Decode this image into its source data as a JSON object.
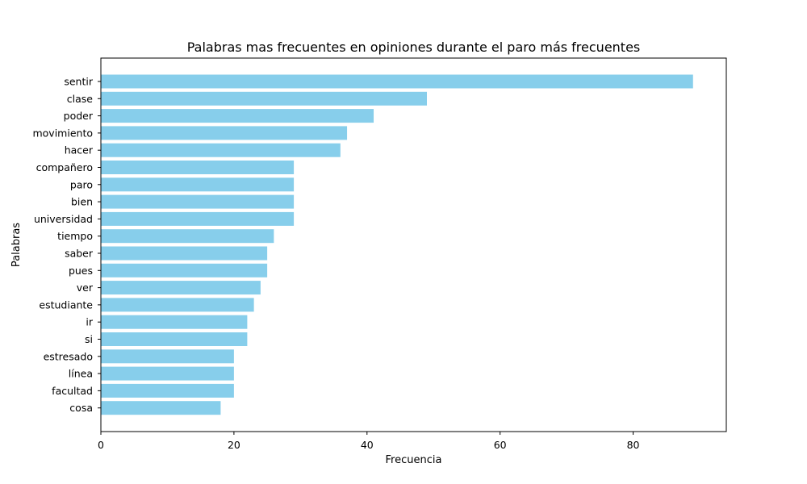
{
  "chart_data": {
    "type": "bar",
    "orientation": "horizontal",
    "title": "Palabras mas frecuentes en opiniones durante el paro más frecuentes",
    "xlabel": "Frecuencia",
    "ylabel": "Palabras",
    "xlim": [
      0,
      94
    ],
    "xticks": [
      0,
      20,
      40,
      60,
      80
    ],
    "categories": [
      "sentir",
      "clase",
      "poder",
      "movimiento",
      "hacer",
      "compañero",
      "paro",
      "bien",
      "universidad",
      "tiempo",
      "saber",
      "pues",
      "ver",
      "estudiante",
      "ir",
      "si",
      "estresado",
      "línea",
      "facultad",
      "cosa"
    ],
    "values": [
      89,
      49,
      41,
      37,
      36,
      29,
      29,
      29,
      29,
      26,
      25,
      25,
      24,
      23,
      22,
      22,
      20,
      20,
      20,
      18
    ],
    "bar_color": "#87ceeb",
    "grid": false,
    "legend": "none"
  }
}
